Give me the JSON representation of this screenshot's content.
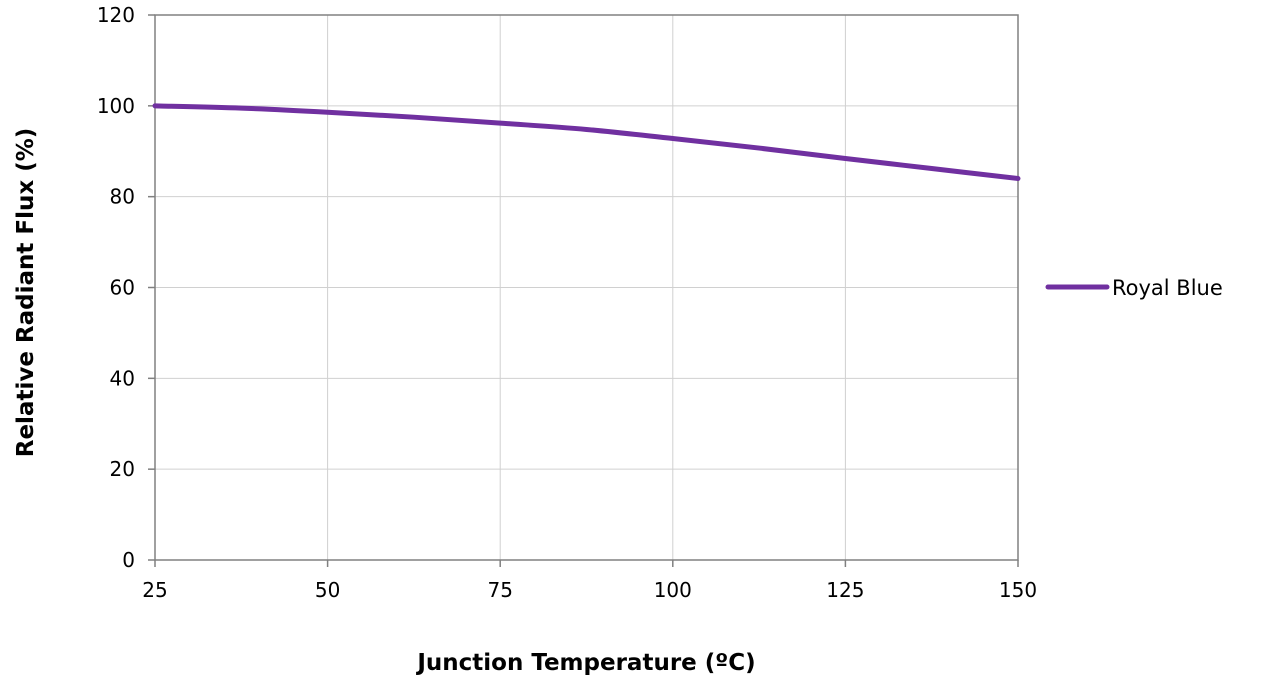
{
  "chart_data": {
    "type": "line",
    "title": "",
    "xlabel": "Junction Temperature (ºC)",
    "ylabel": "Relative Radiant Flux (%)",
    "xlim": [
      25,
      150
    ],
    "ylim": [
      0,
      120
    ],
    "x_ticks": [
      25,
      50,
      75,
      100,
      125,
      150
    ],
    "y_ticks": [
      0,
      20,
      40,
      60,
      80,
      100,
      120
    ],
    "grid": true,
    "legend_position": "right",
    "series": [
      {
        "name": "Royal Blue",
        "color": "#7030A0",
        "x": [
          25,
          37.5,
          50,
          62.5,
          75,
          87.5,
          100,
          112.5,
          125,
          137.5,
          150
        ],
        "y": [
          100,
          99.5,
          98.6,
          97.5,
          96.2,
          94.8,
          92.8,
          90.7,
          88.4,
          86.2,
          84
        ]
      }
    ]
  }
}
